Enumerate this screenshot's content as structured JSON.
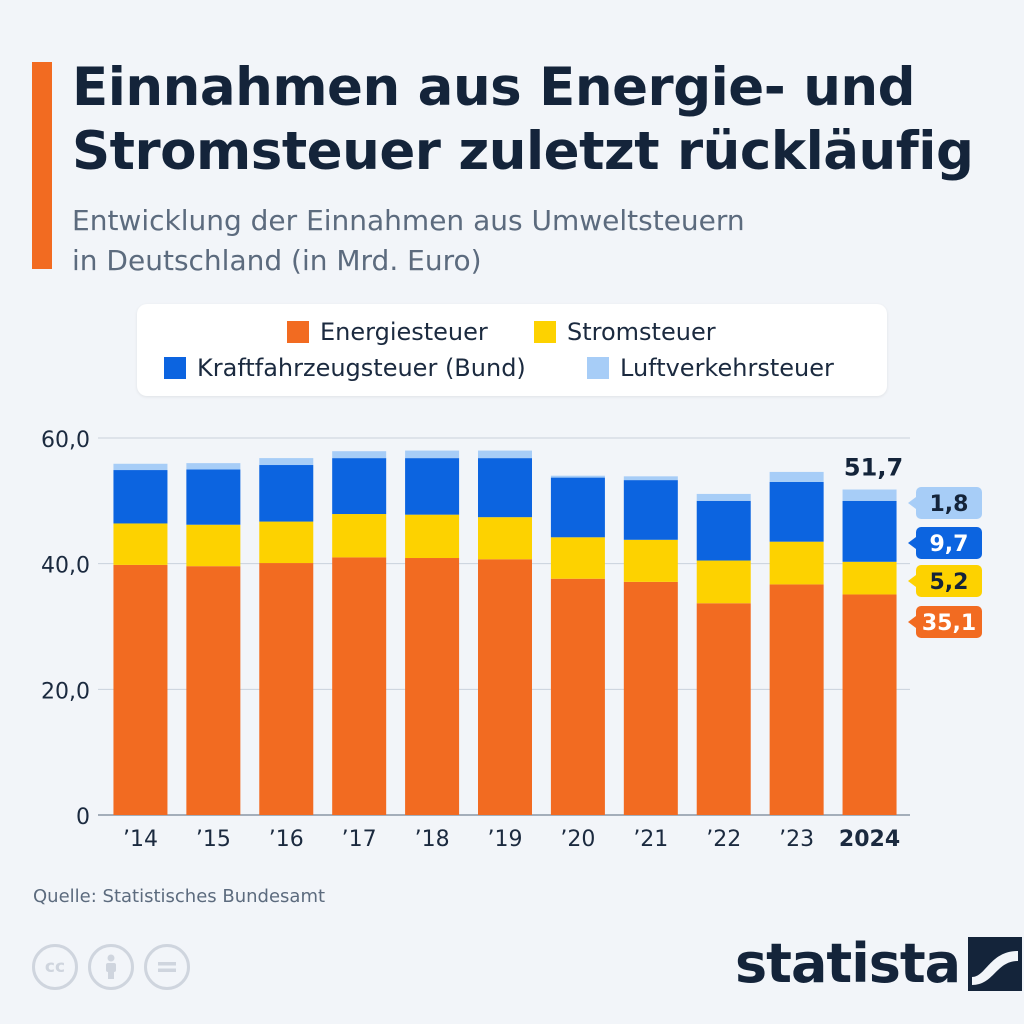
{
  "header": {
    "title_line1": "Einnahmen aus Energie- und",
    "title_line2": "Stromsteuer zuletzt rückläufig",
    "subtitle_line1": "Entwicklung der Einnahmen aus Umweltsteuern",
    "subtitle_line2": "in Deutschland (in Mrd. Euro)"
  },
  "colors": {
    "accent": "#f26b21",
    "energiesteuer": "#f26b21",
    "stromsteuer": "#fdd200",
    "kraftfahrzeugsteuer": "#0c64e0",
    "luftverkehrsteuer": "#a7cdf7",
    "background": "#f2f5f9"
  },
  "chart_data": {
    "type": "bar",
    "stacked": true,
    "categories": [
      "’14",
      "’15",
      "’16",
      "’17",
      "’18",
      "’19",
      "’20",
      "’21",
      "’22",
      "’23",
      "2024"
    ],
    "series": [
      {
        "name": "Energiesteuer",
        "color": "#f26b21",
        "values": [
          39.8,
          39.6,
          40.1,
          41.0,
          40.9,
          40.7,
          37.6,
          37.1,
          33.7,
          36.7,
          35.1
        ]
      },
      {
        "name": "Stromsteuer",
        "color": "#fdd200",
        "values": [
          6.6,
          6.6,
          6.6,
          6.9,
          6.9,
          6.7,
          6.6,
          6.7,
          6.8,
          6.8,
          5.2
        ]
      },
      {
        "name": "Kraftfahrzeugsteuer (Bund)",
        "color": "#0c64e0",
        "values": [
          8.5,
          8.8,
          9.0,
          8.9,
          9.0,
          9.4,
          9.5,
          9.5,
          9.5,
          9.5,
          9.7
        ]
      },
      {
        "name": "Luftverkehrsteuer",
        "color": "#a7cdf7",
        "values": [
          1.0,
          1.0,
          1.1,
          1.1,
          1.2,
          1.2,
          0.3,
          0.6,
          1.1,
          1.6,
          1.8
        ]
      }
    ],
    "yticks": [
      "0",
      "20,0",
      "40,0",
      "60,0"
    ],
    "ylim": [
      0,
      60
    ],
    "grid": true,
    "legend_position": "top",
    "highlight_category": "2024",
    "total_label_2024": "51,7",
    "segment_labels_2024": [
      "35,1",
      "5,2",
      "9,7",
      "1,8"
    ],
    "xlabel": "",
    "ylabel": ""
  },
  "footer": {
    "source": "Quelle: Statistisches Bundesamt",
    "logo": "statista",
    "license_icons": [
      "cc-icon",
      "attribution-icon",
      "no-derivatives-icon"
    ]
  }
}
